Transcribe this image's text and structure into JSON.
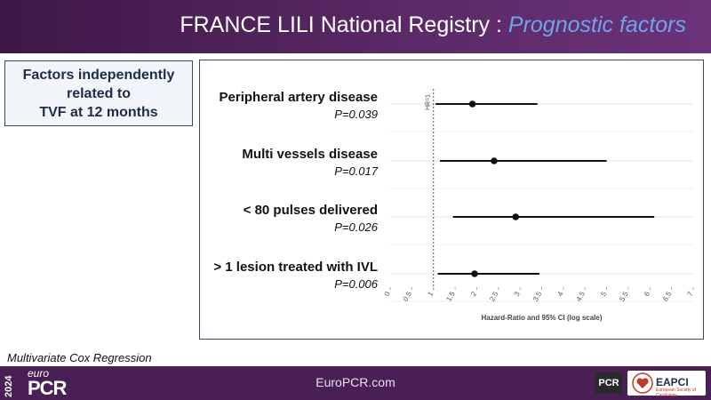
{
  "header": {
    "title": "FRANCE LILI National Registry : ",
    "title_accent": "Prognostic factors"
  },
  "factors_box": {
    "line1": "Factors independently",
    "line2": "related to",
    "line3": "TVF at 12 months"
  },
  "caption": "Multivariate Cox Regression",
  "footer": {
    "year": "2024",
    "brand_top": "euro",
    "brand_main": "PCR",
    "url": "EuroPCR.com",
    "badge_pcr": "PCR",
    "badge_eapci": "EAPCI",
    "badge_eapci_sub": "European Society of Cardiology"
  },
  "colors": {
    "header_bg": "#5c2a68",
    "accent": "#6ea4e8",
    "footer_bg": "#4a1f55"
  },
  "chart_data": {
    "type": "forest",
    "xlabel": "Hazard-Ratio and 95% CI (log scale)",
    "ref_label": "HR=1",
    "ref_value": 1,
    "xlim": [
      0,
      7
    ],
    "xticks": [
      "0",
      "0.5",
      "1",
      "1.5",
      "2",
      "2.5",
      "3",
      "3.5",
      "4",
      "4.5",
      "5",
      "5.5",
      "6",
      "6.5",
      "7"
    ],
    "rows": [
      {
        "label": "Peripheral artery disease",
        "p": "P=0.039",
        "hr": 1.9,
        "lo": 1.05,
        "hi": 3.4
      },
      {
        "label": "Multi vessels disease",
        "p": "P=0.017",
        "hr": 2.4,
        "lo": 1.15,
        "hi": 5.0
      },
      {
        "label": "< 80 pulses delivered",
        "p": "P=0.026",
        "hr": 2.9,
        "lo": 1.45,
        "hi": 6.1
      },
      {
        "label": "> 1 lesion treated with IVL",
        "p": "P=0.006",
        "hr": 1.95,
        "lo": 1.1,
        "hi": 3.45
      }
    ]
  }
}
